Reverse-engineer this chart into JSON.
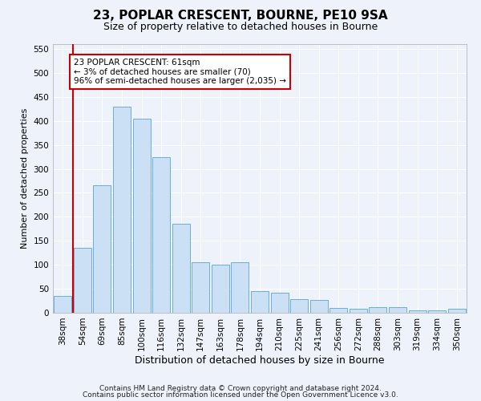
{
  "title1": "23, POPLAR CRESCENT, BOURNE, PE10 9SA",
  "title2": "Size of property relative to detached houses in Bourne",
  "xlabel": "Distribution of detached houses by size in Bourne",
  "ylabel": "Number of detached properties",
  "categories": [
    "38sqm",
    "54sqm",
    "69sqm",
    "85sqm",
    "100sqm",
    "116sqm",
    "132sqm",
    "147sqm",
    "163sqm",
    "178sqm",
    "194sqm",
    "210sqm",
    "225sqm",
    "241sqm",
    "256sqm",
    "272sqm",
    "288sqm",
    "303sqm",
    "319sqm",
    "334sqm",
    "350sqm"
  ],
  "values": [
    35,
    135,
    265,
    430,
    405,
    325,
    185,
    105,
    100,
    105,
    45,
    42,
    28,
    27,
    10,
    8,
    12,
    12,
    5,
    5,
    8
  ],
  "bar_color": "#cce0f5",
  "bar_edge_color": "#6aaed6",
  "vline_color": "#cc0000",
  "annotation_text": "23 POPLAR CRESCENT: 61sqm\n← 3% of detached houses are smaller (70)\n96% of semi-detached houses are larger (2,035) →",
  "annotation_box_facecolor": "#ffffff",
  "annotation_box_edgecolor": "#cc0000",
  "ylim": [
    0,
    560
  ],
  "yticks": [
    0,
    50,
    100,
    150,
    200,
    250,
    300,
    350,
    400,
    450,
    500,
    550
  ],
  "footer1": "Contains HM Land Registry data © Crown copyright and database right 2024.",
  "footer2": "Contains public sector information licensed under the Open Government Licence v3.0.",
  "bg_color": "#eef2fa",
  "plot_bg_color": "#eef2fa",
  "title1_fontsize": 11,
  "title2_fontsize": 9,
  "xlabel_fontsize": 9,
  "ylabel_fontsize": 8,
  "tick_fontsize": 7.5,
  "annotation_fontsize": 7.5,
  "footer_fontsize": 6.5
}
